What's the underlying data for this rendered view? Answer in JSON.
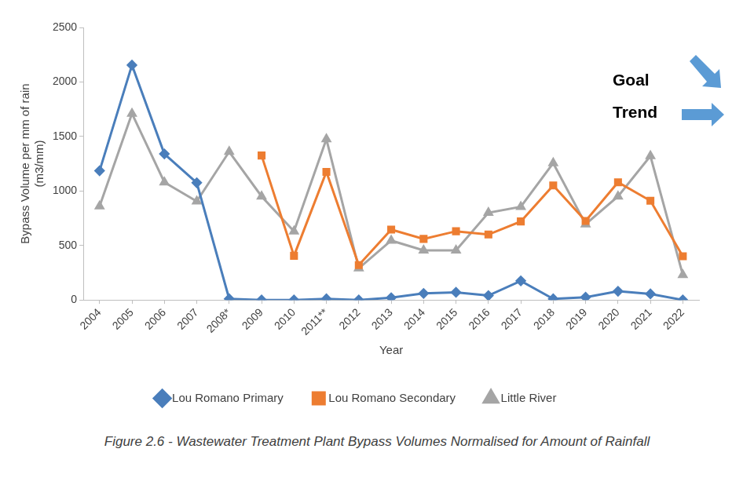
{
  "chart_data": {
    "type": "line",
    "x_label": "Year",
    "y_label": [
      "Bypass Volume per mm of rain",
      "(m3/mm)"
    ],
    "caption": "Figure 2.6 - Wastewater Treatment Plant Bypass Volumes Normalised for Amount of Rainfall",
    "annotations": [
      {
        "text": "Goal"
      },
      {
        "text": "Trend"
      }
    ],
    "categories": [
      "2004",
      "2005",
      "2006",
      "2007",
      "2008*",
      "2009",
      "2010",
      "2011**",
      "2012",
      "2013",
      "2014",
      "2015",
      "2016",
      "2017",
      "2018",
      "2019",
      "2020",
      "2021",
      "2022"
    ],
    "series": [
      {
        "name": "Lou Romano Primary",
        "color": "#4a7ebb",
        "marker": "diamond",
        "values": [
          1185,
          2155,
          1340,
          1075,
          10,
          0,
          0,
          10,
          0,
          20,
          60,
          70,
          40,
          175,
          10,
          25,
          80,
          55,
          0
        ]
      },
      {
        "name": "Lou Romano Secondary",
        "color": "#ed7d31",
        "marker": "square",
        "values": [
          null,
          null,
          null,
          null,
          null,
          1325,
          405,
          1175,
          320,
          645,
          560,
          630,
          600,
          720,
          1050,
          725,
          1080,
          910,
          400
        ]
      },
      {
        "name": "Little River",
        "color": "#a5a5a5",
        "marker": "triangle",
        "values": [
          860,
          1710,
          1080,
          905,
          1360,
          950,
          630,
          1475,
          290,
          545,
          455,
          455,
          800,
          855,
          1255,
          695,
          950,
          1320,
          230
        ]
      }
    ],
    "ylim": [
      0,
      2500
    ],
    "yticks": [
      0,
      500,
      1000,
      1500,
      2000,
      2500
    ],
    "grid": false,
    "legend": "bottom"
  }
}
